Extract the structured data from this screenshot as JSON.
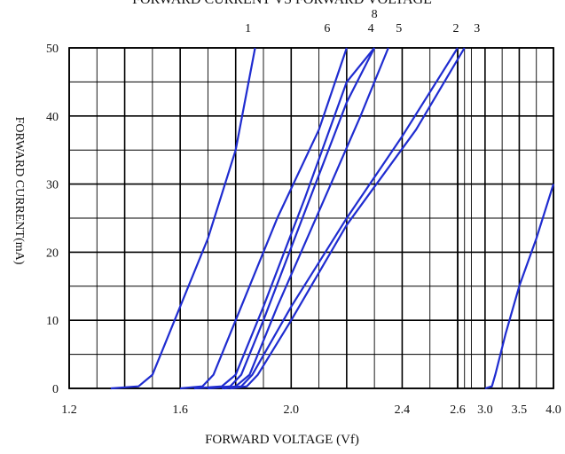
{
  "chart_data": {
    "type": "line",
    "title": "FORWARD CURRENT VS FORWARD VOLTAGE",
    "xlabel": "FORWARD VOLTAGE (Vf)",
    "ylabel": "FORWARD CURRENT(mA)",
    "ylim": [
      0,
      50
    ],
    "y_ticks": [
      "0",
      "10",
      "20",
      "30",
      "40",
      "50"
    ],
    "x_tick_labels": [
      "1.2",
      "1.6",
      "2.0",
      "2.4",
      "2.6",
      "3.0",
      "3.5",
      "4.0"
    ],
    "grid": true,
    "axis_note": "x-axis is split: 1.2–2.6 V on the left panel, 2.6–4.0 V on the right panel",
    "series": [
      {
        "name": "1",
        "points": [
          [
            1.35,
            0
          ],
          [
            1.45,
            0.3
          ],
          [
            1.5,
            2
          ],
          [
            1.6,
            12
          ],
          [
            1.7,
            22
          ],
          [
            1.8,
            35
          ],
          [
            1.87,
            50
          ]
        ]
      },
      {
        "name": "6",
        "points": [
          [
            1.6,
            0
          ],
          [
            1.68,
            0.3
          ],
          [
            1.72,
            2
          ],
          [
            1.8,
            10
          ],
          [
            1.95,
            25
          ],
          [
            2.1,
            38
          ],
          [
            2.2,
            50
          ]
        ]
      },
      {
        "name": "4",
        "points": [
          [
            1.65,
            0
          ],
          [
            1.75,
            0.3
          ],
          [
            1.8,
            2
          ],
          [
            1.9,
            12
          ],
          [
            2.05,
            28
          ],
          [
            2.2,
            45
          ],
          [
            2.3,
            50
          ]
        ]
      },
      {
        "name": "8",
        "points": [
          [
            1.7,
            0
          ],
          [
            1.78,
            0.3
          ],
          [
            1.82,
            2
          ],
          [
            1.9,
            10
          ],
          [
            2.05,
            26
          ],
          [
            2.2,
            42
          ],
          [
            2.3,
            50
          ]
        ]
      },
      {
        "name": "5",
        "points": [
          [
            1.75,
            0
          ],
          [
            1.8,
            0.3
          ],
          [
            1.85,
            2
          ],
          [
            1.95,
            12
          ],
          [
            2.1,
            26
          ],
          [
            2.25,
            40
          ],
          [
            2.35,
            50
          ]
        ]
      },
      {
        "name": "2",
        "points": [
          [
            1.76,
            0
          ],
          [
            1.82,
            0.3
          ],
          [
            1.86,
            2
          ],
          [
            2.0,
            12
          ],
          [
            2.2,
            25
          ],
          [
            2.4,
            37
          ],
          [
            2.6,
            50
          ]
        ]
      },
      {
        "name": "3",
        "points": [
          [
            1.78,
            0
          ],
          [
            1.84,
            0.3
          ],
          [
            1.88,
            2
          ],
          [
            2.0,
            10
          ],
          [
            2.2,
            24
          ],
          [
            2.45,
            38
          ],
          [
            2.7,
            50
          ]
        ]
      },
      {
        "name": "",
        "points": [
          [
            3.0,
            0
          ],
          [
            3.1,
            0.3
          ],
          [
            3.15,
            2
          ],
          [
            3.3,
            8
          ],
          [
            3.5,
            15
          ],
          [
            3.75,
            22
          ],
          [
            4.0,
            30
          ]
        ]
      }
    ],
    "series_labels": [
      "1",
      "6",
      "4",
      "8",
      "5",
      "2",
      "3"
    ],
    "colors": {
      "series": "#1f2cd0",
      "grid": "#000000",
      "background": "#ffffff"
    }
  }
}
